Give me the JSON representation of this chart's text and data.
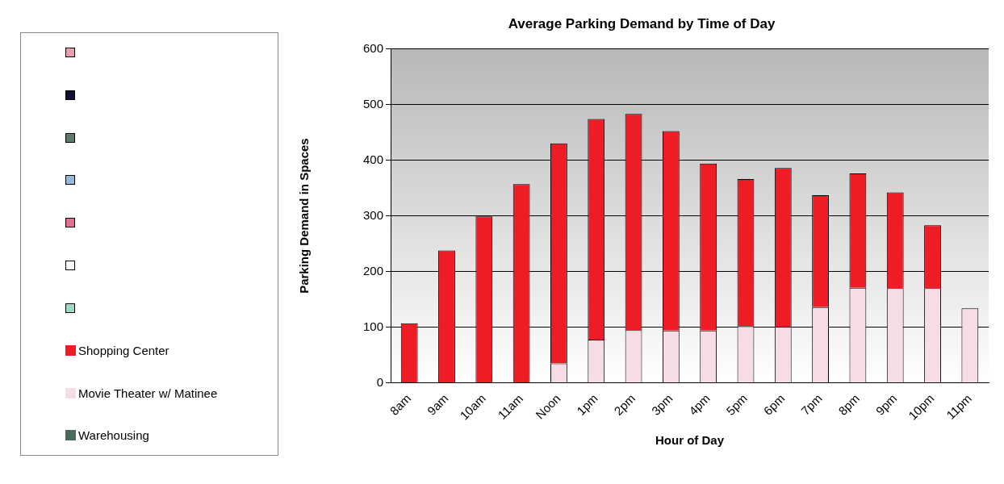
{
  "chart_data": {
    "type": "bar",
    "title": "Average Parking Demand by Time of Day",
    "xlabel": "Hour of Day",
    "ylabel": "Parking Demand in Spaces",
    "categories": [
      "8am",
      "9am",
      "10am",
      "11am",
      "Noon",
      "1pm",
      "2pm",
      "3pm",
      "4pm",
      "5pm",
      "6pm",
      "7pm",
      "8pm",
      "9pm",
      "10pm",
      "11pm"
    ],
    "stacked": true,
    "ylim": [
      0,
      600
    ],
    "yticks": [
      0,
      100,
      200,
      300,
      400,
      500,
      600
    ],
    "grid": "y",
    "legend": "left",
    "series": [
      {
        "name": "Warehousing",
        "color": "#4a6a5a",
        "values": [
          0,
          0,
          0,
          0,
          0,
          0,
          0,
          0,
          0,
          0,
          0,
          0,
          0,
          0,
          0,
          0
        ]
      },
      {
        "name": "Movie Theater w/ Matinee",
        "color": "#f6dde4",
        "values": [
          0,
          0,
          0,
          0,
          35,
          78,
          95,
          94,
          94,
          102,
          101,
          136,
          171,
          170,
          170,
          134
        ]
      },
      {
        "name": "Shopping Center",
        "color": "#ee1c24",
        "values": [
          107,
          238,
          299,
          357,
          395,
          396,
          388,
          358,
          300,
          264,
          285,
          201,
          205,
          172,
          113,
          0
        ]
      },
      {
        "color": "#a0d8c8",
        "values": [
          null,
          null,
          null,
          null,
          null,
          null,
          null,
          null,
          null,
          null,
          null,
          null,
          null,
          null,
          null,
          null
        ]
      },
      {
        "color": "#ffffff",
        "values": [
          null,
          null,
          null,
          null,
          null,
          null,
          null,
          null,
          null,
          null,
          null,
          null,
          null,
          null,
          null,
          null
        ]
      },
      {
        "color": "#e07090",
        "values": [
          null,
          null,
          null,
          null,
          null,
          null,
          null,
          null,
          null,
          null,
          null,
          null,
          null,
          null,
          null,
          null
        ]
      },
      {
        "color": "#9ab8d8",
        "values": [
          null,
          null,
          null,
          null,
          null,
          null,
          null,
          null,
          null,
          null,
          null,
          null,
          null,
          null,
          null,
          null
        ]
      },
      {
        "color": "#5a7a6a",
        "values": [
          null,
          null,
          null,
          null,
          null,
          null,
          null,
          null,
          null,
          null,
          null,
          null,
          null,
          null,
          null,
          null
        ]
      },
      {
        "color": "#101030",
        "values": [
          null,
          null,
          null,
          null,
          null,
          null,
          null,
          null,
          null,
          null,
          null,
          null,
          null,
          null,
          null,
          null
        ]
      },
      {
        "color": "#e8a0b0",
        "values": [
          null,
          null,
          null,
          null,
          null,
          null,
          null,
          null,
          null,
          null,
          null,
          null,
          null,
          null,
          null,
          null
        ]
      }
    ]
  }
}
